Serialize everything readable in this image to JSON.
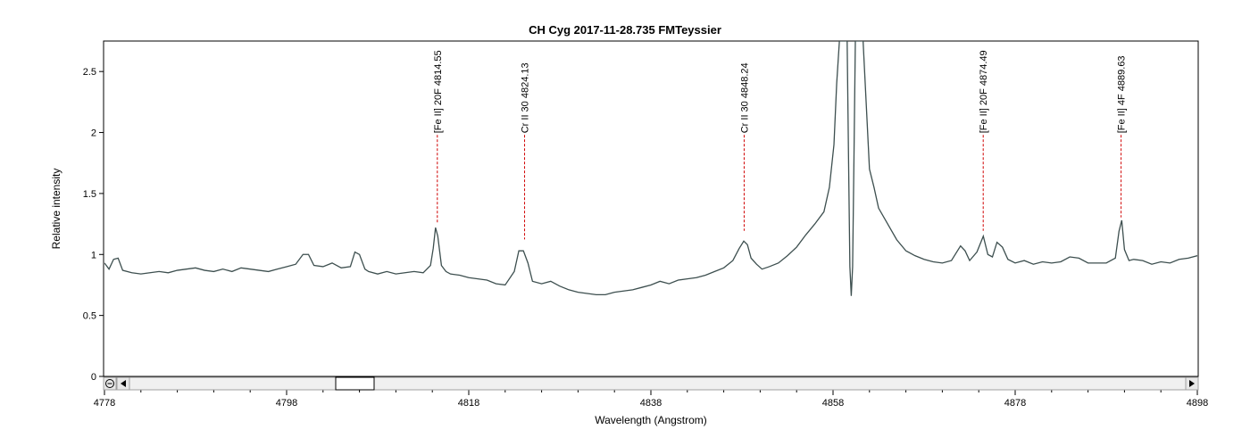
{
  "chart_data": {
    "type": "line",
    "title": "CH Cyg  2017-11-28.735    FMTeyssier",
    "xlabel": "Wavelength (Angstrom)",
    "ylabel": "Relative intensity",
    "xlim": [
      4778,
      4898
    ],
    "ylim": [
      0,
      2.75
    ],
    "grid": false,
    "x_ticks": [
      "4778",
      "4798",
      "4818",
      "4838",
      "4858",
      "4878",
      "4898"
    ],
    "y_ticks": [
      "0",
      "0.5",
      "1",
      "1.5",
      "2",
      "2.5"
    ],
    "line_color": "#3d4f4f",
    "marker_color": "#d00000",
    "line_markers": [
      {
        "label": "[Fe II] 20F 4814.55",
        "x": 4814.55,
        "y": 1.22
      },
      {
        "label": "Cr II 30 4824.13",
        "x": 4824.13,
        "y": 1.08
      },
      {
        "label": "Cr II 30 4848.24",
        "x": 4848.24,
        "y": 1.15
      },
      {
        "label": "[Fe II] 20F 4874.49",
        "x": 4874.49,
        "y": 1.15
      },
      {
        "label": "[Fe II] 4F 4889.63",
        "x": 4889.63,
        "y": 1.26
      }
    ],
    "series": [
      {
        "points": [
          [
            4778.0,
            0.93
          ],
          [
            4778.5,
            0.88
          ],
          [
            4779.0,
            0.96
          ],
          [
            4779.5,
            0.97
          ],
          [
            4780.0,
            0.87
          ],
          [
            4781.0,
            0.85
          ],
          [
            4782.0,
            0.84
          ],
          [
            4783.0,
            0.85
          ],
          [
            4784.0,
            0.86
          ],
          [
            4785.0,
            0.85
          ],
          [
            4786.0,
            0.87
          ],
          [
            4787.0,
            0.88
          ],
          [
            4788.0,
            0.89
          ],
          [
            4789.0,
            0.87
          ],
          [
            4790.0,
            0.86
          ],
          [
            4791.0,
            0.88
          ],
          [
            4792.0,
            0.86
          ],
          [
            4793.0,
            0.89
          ],
          [
            4794.0,
            0.88
          ],
          [
            4795.0,
            0.87
          ],
          [
            4796.0,
            0.86
          ],
          [
            4797.0,
            0.88
          ],
          [
            4798.0,
            0.9
          ],
          [
            4799.0,
            0.92
          ],
          [
            4799.8,
            1.0
          ],
          [
            4800.4,
            1.0
          ],
          [
            4801.0,
            0.91
          ],
          [
            4802.0,
            0.9
          ],
          [
            4803.0,
            0.93
          ],
          [
            4804.0,
            0.89
          ],
          [
            4805.0,
            0.9
          ],
          [
            4805.5,
            1.02
          ],
          [
            4806.0,
            1.0
          ],
          [
            4806.6,
            0.88
          ],
          [
            4807.0,
            0.86
          ],
          [
            4808.0,
            0.84
          ],
          [
            4809.0,
            0.86
          ],
          [
            4810.0,
            0.84
          ],
          [
            4811.0,
            0.85
          ],
          [
            4812.0,
            0.86
          ],
          [
            4813.0,
            0.85
          ],
          [
            4813.8,
            0.91
          ],
          [
            4814.1,
            1.05
          ],
          [
            4814.35,
            1.22
          ],
          [
            4814.6,
            1.15
          ],
          [
            4815.0,
            0.91
          ],
          [
            4815.5,
            0.86
          ],
          [
            4816.0,
            0.84
          ],
          [
            4817.0,
            0.83
          ],
          [
            4818.0,
            0.81
          ],
          [
            4819.0,
            0.8
          ],
          [
            4820.0,
            0.79
          ],
          [
            4821.0,
            0.76
          ],
          [
            4822.0,
            0.75
          ],
          [
            4823.0,
            0.86
          ],
          [
            4823.5,
            1.03
          ],
          [
            4824.0,
            1.03
          ],
          [
            4824.5,
            0.93
          ],
          [
            4825.0,
            0.78
          ],
          [
            4826.0,
            0.76
          ],
          [
            4827.0,
            0.78
          ],
          [
            4828.0,
            0.74
          ],
          [
            4829.0,
            0.71
          ],
          [
            4830.0,
            0.69
          ],
          [
            4831.0,
            0.68
          ],
          [
            4832.0,
            0.67
          ],
          [
            4833.0,
            0.67
          ],
          [
            4834.0,
            0.69
          ],
          [
            4835.0,
            0.7
          ],
          [
            4836.0,
            0.71
          ],
          [
            4837.0,
            0.73
          ],
          [
            4838.0,
            0.75
          ],
          [
            4839.0,
            0.78
          ],
          [
            4840.0,
            0.76
          ],
          [
            4841.0,
            0.79
          ],
          [
            4842.0,
            0.8
          ],
          [
            4843.0,
            0.81
          ],
          [
            4844.0,
            0.83
          ],
          [
            4845.0,
            0.86
          ],
          [
            4846.0,
            0.89
          ],
          [
            4847.0,
            0.95
          ],
          [
            4847.7,
            1.05
          ],
          [
            4848.2,
            1.11
          ],
          [
            4848.6,
            1.08
          ],
          [
            4849.0,
            0.97
          ],
          [
            4849.6,
            0.92
          ],
          [
            4850.2,
            0.88
          ],
          [
            4851.0,
            0.9
          ],
          [
            4852.0,
            0.93
          ],
          [
            4853.0,
            0.99
          ],
          [
            4854.0,
            1.06
          ],
          [
            4855.0,
            1.16
          ],
          [
            4856.0,
            1.25
          ],
          [
            4857.0,
            1.35
          ],
          [
            4857.6,
            1.55
          ],
          [
            4858.1,
            1.9
          ],
          [
            4858.4,
            2.4
          ],
          [
            4858.7,
            2.75
          ],
          [
            4859.55,
            2.75
          ],
          [
            4859.7,
            1.8
          ],
          [
            4859.85,
            0.9
          ],
          [
            4860.0,
            0.66
          ],
          [
            4860.15,
            0.9
          ],
          [
            4860.3,
            1.8
          ],
          [
            4860.45,
            2.75
          ],
          [
            4861.3,
            2.75
          ],
          [
            4861.6,
            2.3
          ],
          [
            4862.0,
            1.7
          ],
          [
            4862.5,
            1.55
          ],
          [
            4863.0,
            1.38
          ],
          [
            4864.0,
            1.25
          ],
          [
            4865.0,
            1.12
          ],
          [
            4866.0,
            1.03
          ],
          [
            4867.0,
            0.99
          ],
          [
            4868.0,
            0.96
          ],
          [
            4869.0,
            0.94
          ],
          [
            4870.0,
            0.93
          ],
          [
            4871.0,
            0.95
          ],
          [
            4872.0,
            1.07
          ],
          [
            4872.5,
            1.03
          ],
          [
            4873.0,
            0.95
          ],
          [
            4873.8,
            1.02
          ],
          [
            4874.5,
            1.15
          ],
          [
            4875.0,
            1.0
          ],
          [
            4875.5,
            0.98
          ],
          [
            4876.0,
            1.1
          ],
          [
            4876.6,
            1.06
          ],
          [
            4877.2,
            0.96
          ],
          [
            4878.0,
            0.93
          ],
          [
            4879.0,
            0.95
          ],
          [
            4880.0,
            0.92
          ],
          [
            4881.0,
            0.94
          ],
          [
            4882.0,
            0.93
          ],
          [
            4883.0,
            0.94
          ],
          [
            4884.0,
            0.98
          ],
          [
            4885.0,
            0.97
          ],
          [
            4886.0,
            0.93
          ],
          [
            4887.0,
            0.93
          ],
          [
            4888.0,
            0.93
          ],
          [
            4889.0,
            0.97
          ],
          [
            4889.4,
            1.19
          ],
          [
            4889.7,
            1.28
          ],
          [
            4890.0,
            1.04
          ],
          [
            4890.5,
            0.95
          ],
          [
            4891.0,
            0.96
          ],
          [
            4892.0,
            0.95
          ],
          [
            4893.0,
            0.92
          ],
          [
            4894.0,
            0.94
          ],
          [
            4895.0,
            0.93
          ],
          [
            4896.0,
            0.96
          ],
          [
            4897.0,
            0.97
          ],
          [
            4898.0,
            0.99
          ]
        ]
      }
    ]
  }
}
